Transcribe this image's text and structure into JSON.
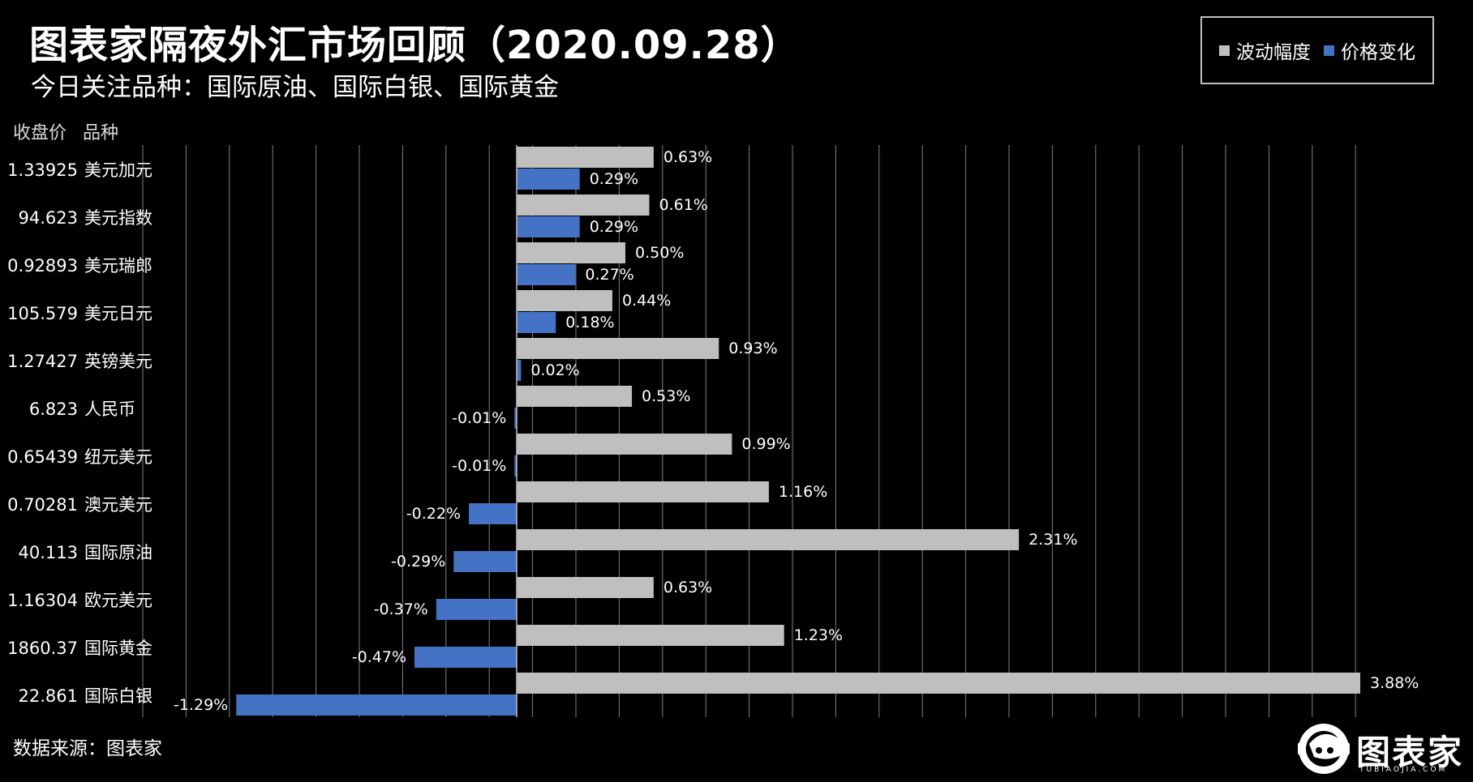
{
  "title": "图表家隔夜外汇市场回顾（2020.09.28）",
  "subtitle": "今日关注品种：国际原油、国际白银、国际黄金",
  "headers": {
    "close_price": "收盘价",
    "variety": "品种"
  },
  "source": "数据来源：图表家",
  "logo": {
    "name": "图表家",
    "domain": "TUBIAOJIA.COM"
  },
  "colors": {
    "background": "#000000",
    "volatility": "#bfbfbf",
    "price_change": "#4472c4",
    "grid": "#7f7f7f"
  },
  "chart_data": {
    "type": "bar",
    "orientation": "horizontal",
    "categories": [
      "美元加元",
      "美元指数",
      "美元瑞郎",
      "美元日元",
      "英镑美元",
      "人民币",
      "纽元美元",
      "澳元美元",
      "国际原油",
      "欧元美元",
      "国际黄金",
      "国际白银"
    ],
    "close_prices": [
      "1.33925",
      "94.623",
      "0.92893",
      "105.579",
      "1.27427",
      "6.823",
      "0.65439",
      "0.70281",
      "40.113",
      "1.16304",
      "1860.37",
      "22.861"
    ],
    "series": [
      {
        "name": "波动幅度",
        "values": [
          0.63,
          0.61,
          0.5,
          0.44,
          0.93,
          0.53,
          0.99,
          1.16,
          2.31,
          0.63,
          1.23,
          3.88
        ],
        "labels": [
          "0.63%",
          "0.61%",
          "0.50%",
          "0.44%",
          "0.93%",
          "0.53%",
          "0.99%",
          "1.16%",
          "2.31%",
          "0.63%",
          "1.23%",
          "3.88%"
        ]
      },
      {
        "name": "价格变化",
        "values": [
          0.29,
          0.29,
          0.27,
          0.18,
          0.02,
          -0.01,
          -0.01,
          -0.22,
          -0.29,
          -0.37,
          -0.47,
          -1.29
        ],
        "labels": [
          "0.29%",
          "0.29%",
          "0.27%",
          "0.18%",
          "0.02%",
          "-0.01%",
          "-0.01%",
          "-0.22%",
          "-0.29%",
          "-0.37%",
          "-0.47%",
          "-1.29%"
        ]
      }
    ],
    "xlim": [
      -1.4,
      4.2
    ],
    "grid": true,
    "legend": "top-right"
  }
}
